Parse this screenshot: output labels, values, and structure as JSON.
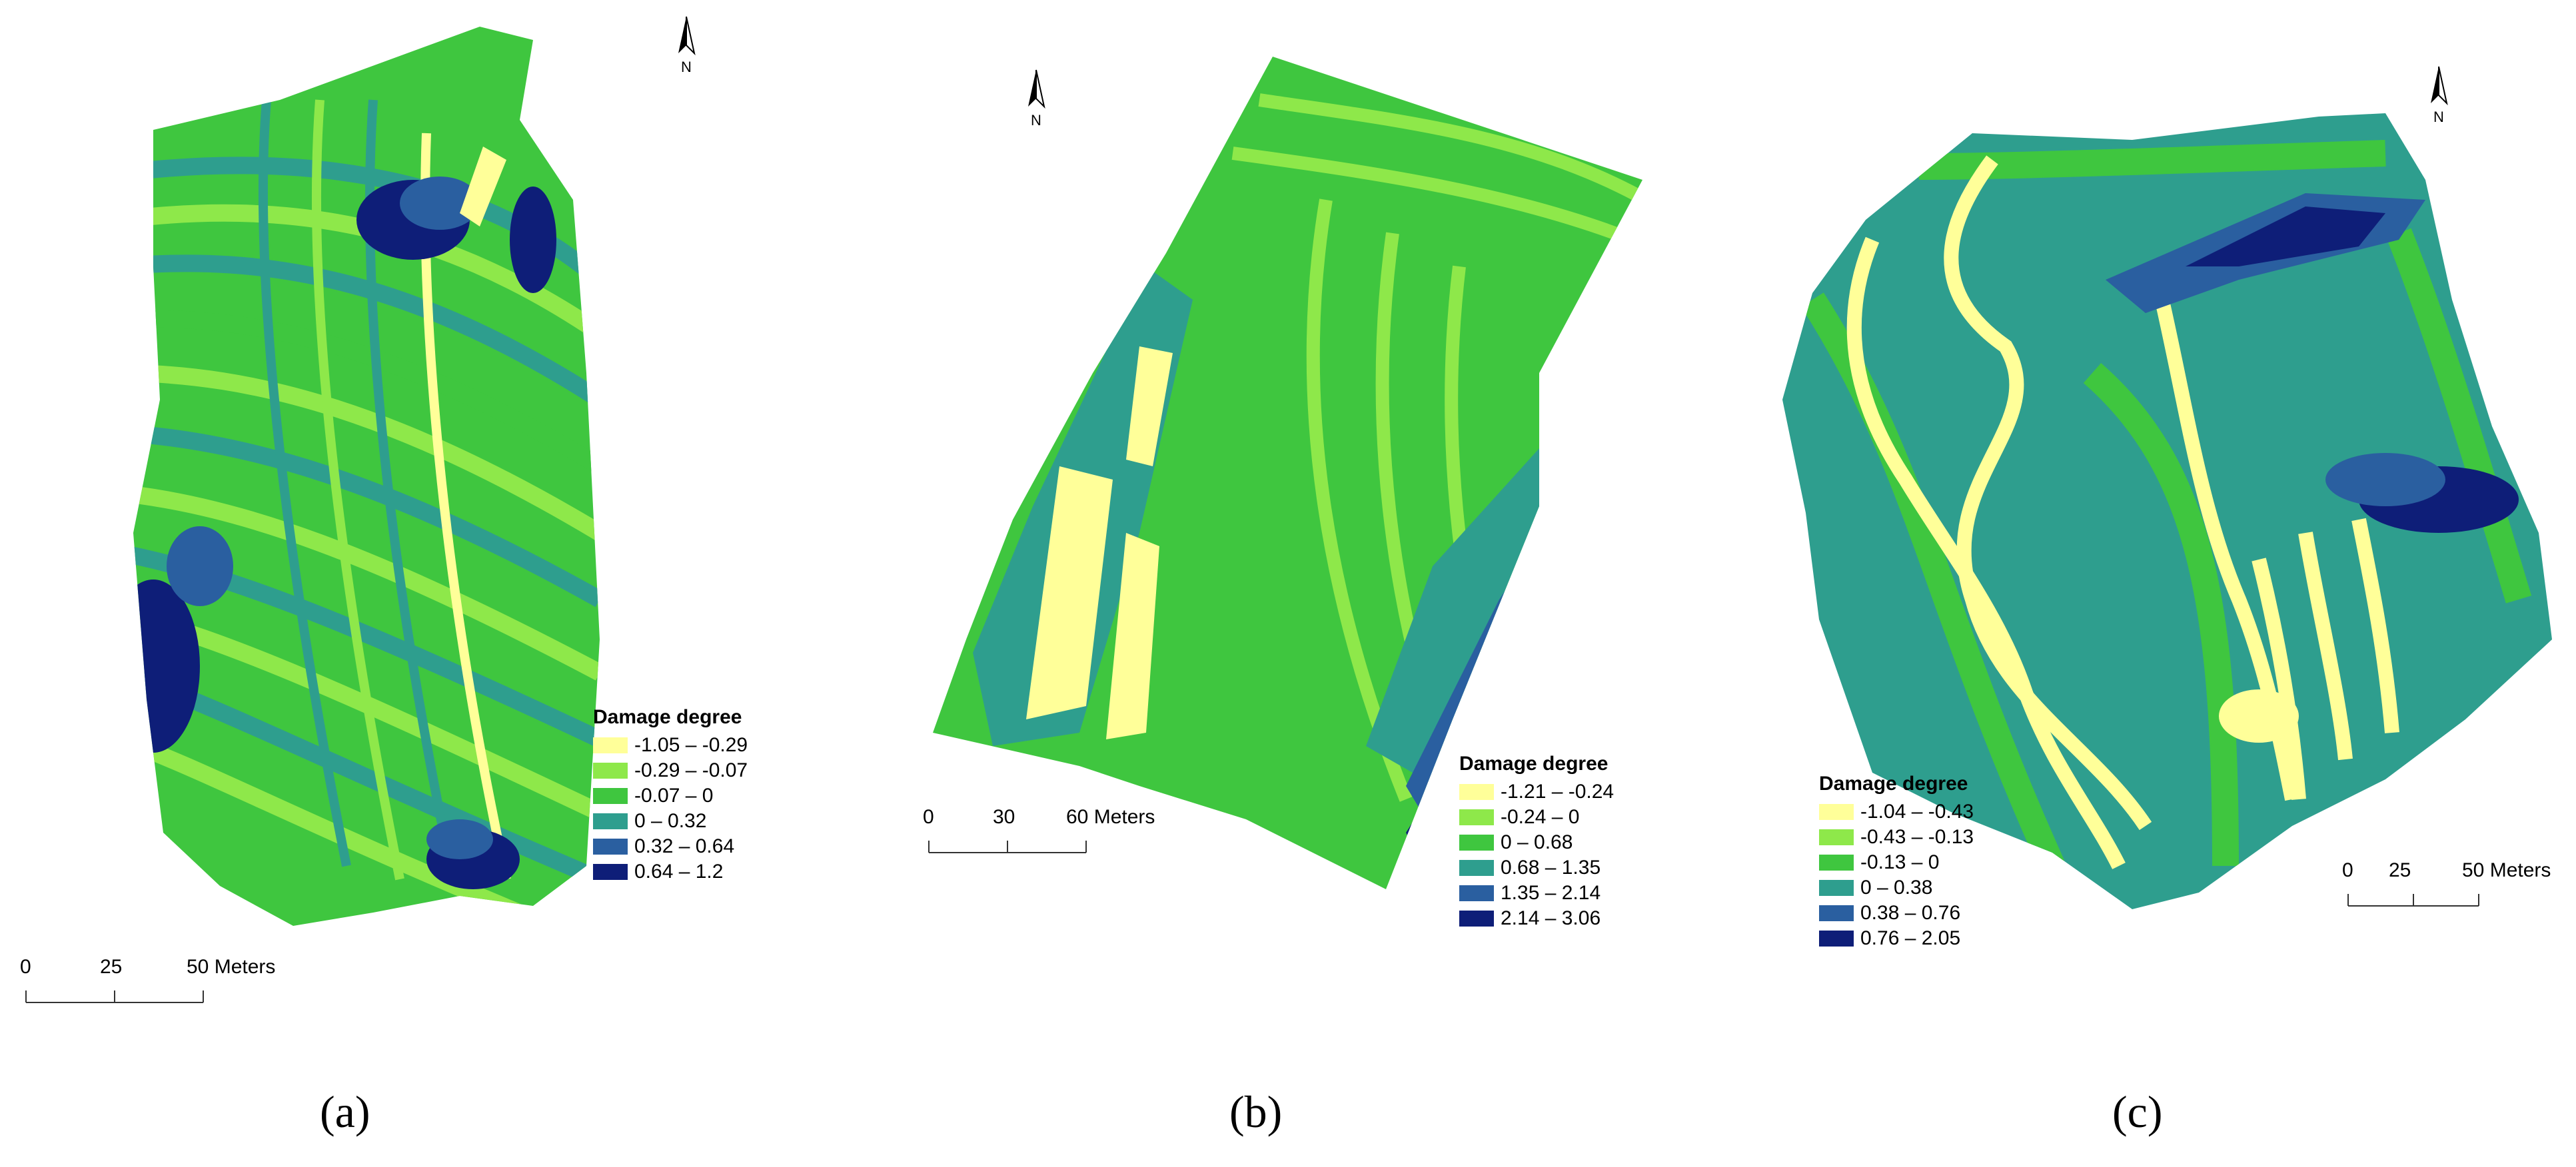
{
  "colors": {
    "c1": "#ffff99",
    "c2": "#8ee84a",
    "c3": "#3fc63f",
    "c4": "#2e9e8e",
    "c5": "#2a5fa0",
    "c6": "#0e1e78"
  },
  "panels": [
    {
      "id": "a",
      "caption": "(a)",
      "north_label": "N",
      "legend": {
        "title": "Damage degree",
        "classes": [
          "-1.05 – -0.29",
          "-0.29 – -0.07",
          "-0.07 – 0",
          "0 – 0.32",
          "0.32 – 0.64",
          "0.64 – 1.2"
        ]
      },
      "scale": {
        "ticks": [
          "0",
          "25",
          "50 Meters"
        ]
      }
    },
    {
      "id": "b",
      "caption": "(b)",
      "north_label": "N",
      "legend": {
        "title": "Damage degree",
        "classes": [
          "-1.21 – -0.24",
          "-0.24 – 0",
          "0 – 0.68",
          "0.68 – 1.35",
          "1.35 – 2.14",
          "2.14 – 3.06"
        ]
      },
      "scale": {
        "ticks": [
          "0",
          "30",
          "60 Meters"
        ]
      }
    },
    {
      "id": "c",
      "caption": "(c)",
      "north_label": "N",
      "legend": {
        "title": "Damage degree",
        "classes": [
          "-1.04 – -0.43",
          "-0.43 – -0.13",
          "-0.13 – 0",
          "0 – 0.38",
          "0.38 – 0.76",
          "0.76 – 2.05"
        ]
      },
      "scale": {
        "ticks": [
          "0",
          "25",
          "50 Meters"
        ]
      }
    }
  ]
}
